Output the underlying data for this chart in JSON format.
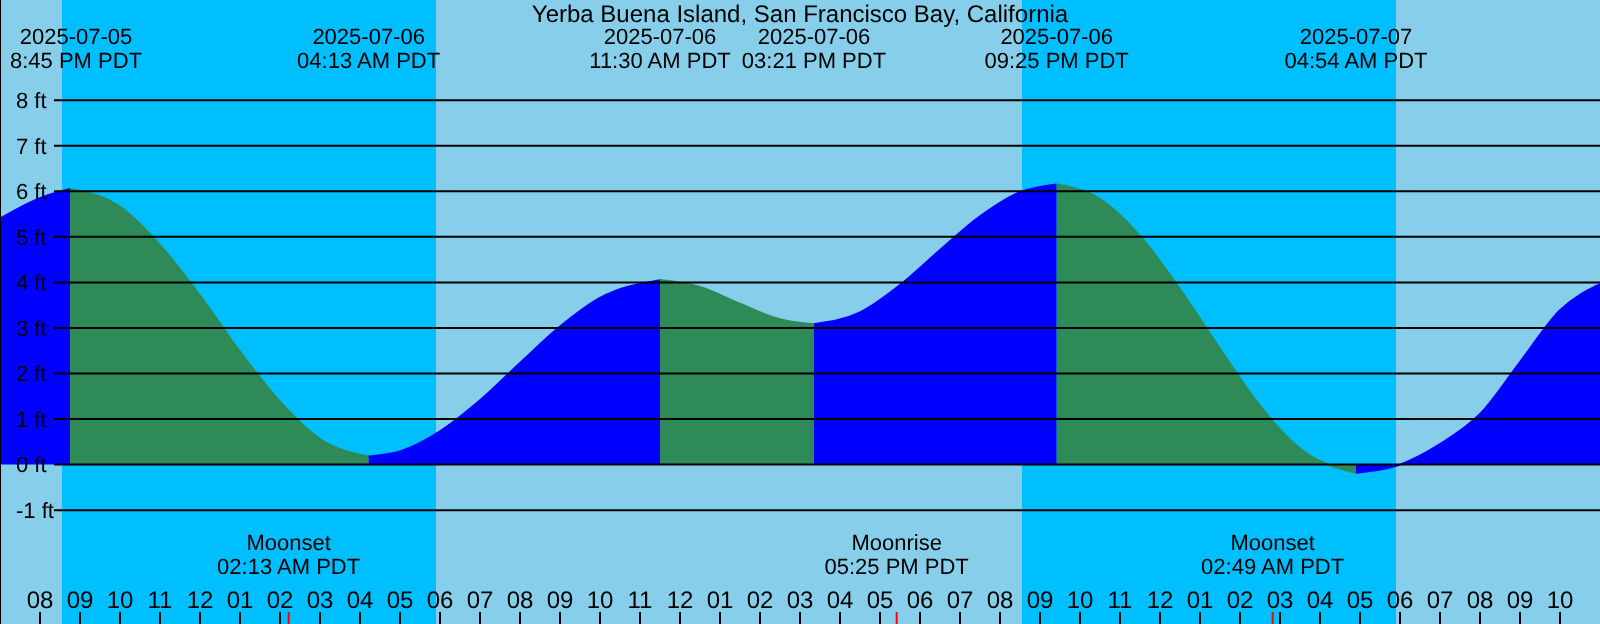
{
  "chart_data": {
    "type": "area",
    "title": "Yerba Buena Island, San Francisco Bay, California",
    "xlim": [
      "2025-07-05T19:00",
      "2025-07-07T11:00"
    ],
    "xticks": [
      {
        "value": "2025-07-05T20:00",
        "label": "08"
      },
      {
        "value": "2025-07-05T21:00",
        "label": "09"
      },
      {
        "value": "2025-07-05T22:00",
        "label": "10"
      },
      {
        "value": "2025-07-05T23:00",
        "label": "11"
      },
      {
        "value": "2025-07-06T00:00",
        "label": "12"
      },
      {
        "value": "2025-07-06T01:00",
        "label": "01"
      },
      {
        "value": "2025-07-06T02:00",
        "label": "02"
      },
      {
        "value": "2025-07-06T03:00",
        "label": "03"
      },
      {
        "value": "2025-07-06T04:00",
        "label": "04"
      },
      {
        "value": "2025-07-06T05:00",
        "label": "05"
      },
      {
        "value": "2025-07-06T06:00",
        "label": "06"
      },
      {
        "value": "2025-07-06T07:00",
        "label": "07"
      },
      {
        "value": "2025-07-06T08:00",
        "label": "08"
      },
      {
        "value": "2025-07-06T09:00",
        "label": "09"
      },
      {
        "value": "2025-07-06T10:00",
        "label": "10"
      },
      {
        "value": "2025-07-06T11:00",
        "label": "11"
      },
      {
        "value": "2025-07-06T12:00",
        "label": "12"
      },
      {
        "value": "2025-07-06T13:00",
        "label": "01"
      },
      {
        "value": "2025-07-06T14:00",
        "label": "02"
      },
      {
        "value": "2025-07-06T15:00",
        "label": "03"
      },
      {
        "value": "2025-07-06T16:00",
        "label": "04"
      },
      {
        "value": "2025-07-06T17:00",
        "label": "05"
      },
      {
        "value": "2025-07-06T18:00",
        "label": "06"
      },
      {
        "value": "2025-07-06T19:00",
        "label": "07"
      },
      {
        "value": "2025-07-06T20:00",
        "label": "08"
      },
      {
        "value": "2025-07-06T21:00",
        "label": "09"
      },
      {
        "value": "2025-07-06T22:00",
        "label": "10"
      },
      {
        "value": "2025-07-06T23:00",
        "label": "11"
      },
      {
        "value": "2025-07-07T00:00",
        "label": "12"
      },
      {
        "value": "2025-07-07T01:00",
        "label": "01"
      },
      {
        "value": "2025-07-07T02:00",
        "label": "02"
      },
      {
        "value": "2025-07-07T03:00",
        "label": "03"
      },
      {
        "value": "2025-07-07T04:00",
        "label": "04"
      },
      {
        "value": "2025-07-07T05:00",
        "label": "05"
      },
      {
        "value": "2025-07-07T06:00",
        "label": "06"
      },
      {
        "value": "2025-07-07T07:00",
        "label": "07"
      },
      {
        "value": "2025-07-07T08:00",
        "label": "08"
      },
      {
        "value": "2025-07-07T09:00",
        "label": "09"
      },
      {
        "value": "2025-07-07T10:00",
        "label": "10"
      }
    ],
    "ylim": [
      -3.5,
      10.2
    ],
    "yticks": [
      {
        "value": -1,
        "label": "-1 ft"
      },
      {
        "value": 0,
        "label": "0 ft"
      },
      {
        "value": 1,
        "label": "1 ft"
      },
      {
        "value": 2,
        "label": "2 ft"
      },
      {
        "value": 3,
        "label": "3 ft"
      },
      {
        "value": 4,
        "label": "4 ft"
      },
      {
        "value": 5,
        "label": "5 ft"
      },
      {
        "value": 6,
        "label": "6 ft"
      },
      {
        "value": 7,
        "label": "7 ft"
      },
      {
        "value": 8,
        "label": "8 ft"
      }
    ],
    "grid": "y",
    "legend": false,
    "series": [
      {
        "color": "#0000ff",
        "x": [
          "2025-07-05T19:00",
          "2025-07-05T20:00",
          "2025-07-05T20:45"
        ],
        "values": [
          5.4,
          5.85,
          6.05
        ]
      },
      {
        "color": "#2e8b57",
        "x": [
          "2025-07-05T20:45",
          "2025-07-05T22:00",
          "2025-07-05T23:00",
          "2025-07-06T00:00",
          "2025-07-06T01:00",
          "2025-07-06T02:00",
          "2025-07-06T03:00",
          "2025-07-06T04:13"
        ],
        "values": [
          6.05,
          5.66,
          4.82,
          3.71,
          2.48,
          1.38,
          0.56,
          0.18
        ]
      },
      {
        "color": "#0000ff",
        "x": [
          "2025-07-06T04:13",
          "2025-07-06T05:00",
          "2025-07-06T06:00",
          "2025-07-06T07:00",
          "2025-07-06T08:00",
          "2025-07-06T09:00",
          "2025-07-06T10:00",
          "2025-07-06T11:30"
        ],
        "values": [
          0.18,
          0.29,
          0.73,
          1.41,
          2.23,
          3.03,
          3.66,
          4.05
        ]
      },
      {
        "color": "#2e8b57",
        "x": [
          "2025-07-06T11:30",
          "2025-07-06T12:30",
          "2025-07-06T13:30",
          "2025-07-06T14:30",
          "2025-07-06T15:21"
        ],
        "values": [
          4.05,
          3.9,
          3.53,
          3.19,
          3.08
        ]
      },
      {
        "color": "#0000ff",
        "x": [
          "2025-07-06T15:21",
          "2025-07-06T16:30",
          "2025-07-06T17:30",
          "2025-07-06T18:30",
          "2025-07-06T19:30",
          "2025-07-06T20:30",
          "2025-07-06T21:25"
        ],
        "values": [
          3.08,
          3.34,
          3.94,
          4.71,
          5.45,
          5.98,
          6.15
        ]
      },
      {
        "color": "#2e8b57",
        "x": [
          "2025-07-06T21:25",
          "2025-07-06T22:30",
          "2025-07-06T23:30",
          "2025-07-07T00:30",
          "2025-07-07T01:30",
          "2025-07-07T02:30",
          "2025-07-07T03:30",
          "2025-07-07T04:54"
        ],
        "values": [
          6.15,
          5.83,
          5.02,
          3.85,
          2.54,
          1.29,
          0.35,
          -0.18
        ]
      },
      {
        "color": "#0000ff",
        "x": [
          "2025-07-07T04:54",
          "2025-07-07T06:00",
          "2025-07-07T07:00",
          "2025-07-07T08:00",
          "2025-07-07T09:00",
          "2025-07-07T10:00",
          "2025-07-07T11:00"
        ],
        "values": [
          -0.18,
          0.0,
          0.45,
          1.11,
          2.25,
          3.39,
          3.96
        ]
      }
    ],
    "bands": [
      {
        "axis": "x",
        "from": "2025-07-05T19:00",
        "to": "2025-07-05T20:33",
        "color": "#87ceeb"
      },
      {
        "axis": "x",
        "from": "2025-07-05T20:33",
        "to": "2025-07-06T05:54",
        "color": "#00bfff"
      },
      {
        "axis": "x",
        "from": "2025-07-06T05:54",
        "to": "2025-07-06T20:33",
        "color": "#87ceeb"
      },
      {
        "axis": "x",
        "from": "2025-07-06T20:33",
        "to": "2025-07-07T05:54",
        "color": "#00bfff"
      },
      {
        "axis": "x",
        "from": "2025-07-07T05:54",
        "to": "2025-07-07T11:00",
        "color": "#87ceeb"
      }
    ],
    "ref_lines": [
      {
        "axis": "x",
        "value": "2025-07-06T02:13",
        "label": "Moonset\n02:13 AM PDT",
        "color": "#ff0000"
      },
      {
        "axis": "x",
        "value": "2025-07-06T17:25",
        "label": "Moonrise\n05:25 PM PDT",
        "color": "#ff0000"
      },
      {
        "axis": "x",
        "value": "2025-07-07T02:49",
        "label": "Moonset\n02:49 AM PDT",
        "color": "#ff0000"
      }
    ],
    "annotations": [
      "2025-07-05\n8:45 PM PDT",
      "2025-07-06\n04:13 AM PDT",
      "2025-07-06\n11:30 AM PDT",
      "2025-07-06\n03:21 PM PDT",
      "2025-07-06\n09:25 PM PDT",
      "2025-07-07\n04:54 AM PDT"
    ]
  }
}
